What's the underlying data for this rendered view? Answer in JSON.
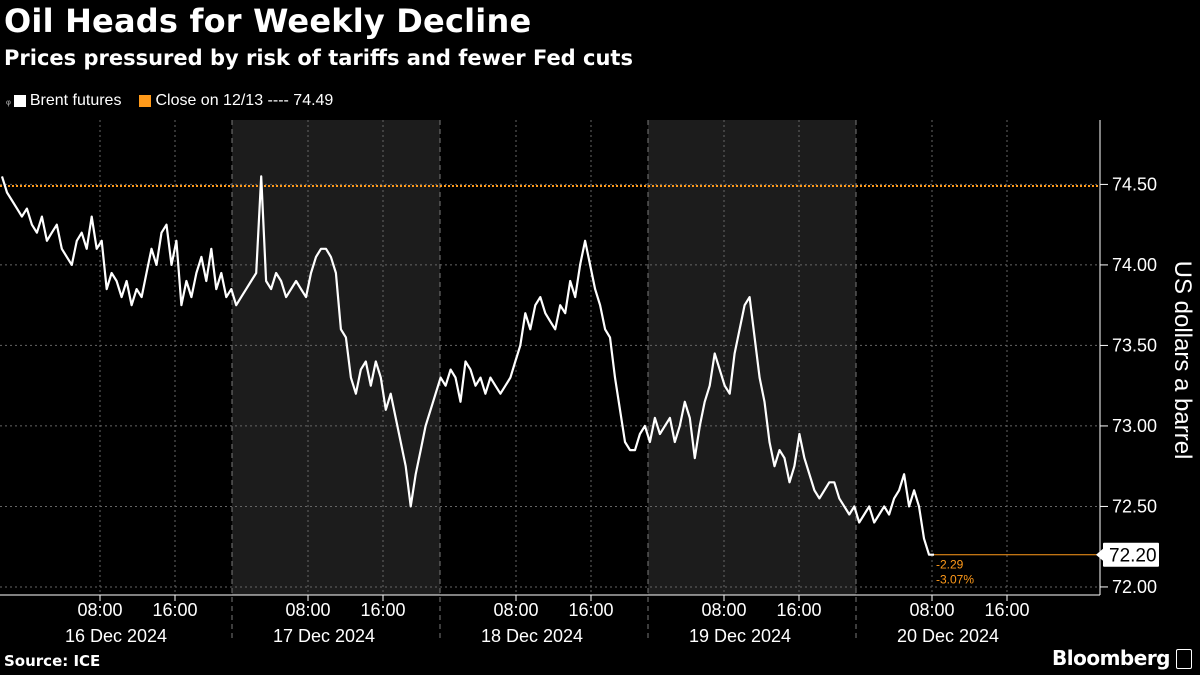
{
  "chart_data": {
    "type": "line",
    "title": "Oil Heads for Weekly Decline",
    "subtitle": "Prices pressured by risk of tariffs and fewer Fed cuts",
    "ylabel": "US dollars a barrel",
    "ylim": [
      71.95,
      74.9
    ],
    "yticks": [
      "72.00",
      "72.50",
      "73.00",
      "73.50",
      "74.00",
      "74.50"
    ],
    "x_time_labels": [
      "08:00",
      "16:00"
    ],
    "days": [
      "16 Dec 2024",
      "17 Dec 2024",
      "18 Dec 2024",
      "19 Dec 2024",
      "20 Dec 2024"
    ],
    "legend": {
      "candle_marker": "ᵩ",
      "series_name": "Brent futures",
      "reference_label": "Close on 12/13 ---- 74.49"
    },
    "reference_line": {
      "value": 74.49,
      "color": "#ff9a1a"
    },
    "last_value": "72.20",
    "change_abs": "-2.29",
    "change_pct": "-3.07%",
    "series": [
      {
        "name": "Brent futures",
        "color": "#ffffff",
        "values": [
          74.55,
          74.45,
          74.4,
          74.35,
          74.3,
          74.35,
          74.25,
          74.2,
          74.3,
          74.15,
          74.2,
          74.25,
          74.1,
          74.05,
          74.0,
          74.15,
          74.2,
          74.1,
          74.3,
          74.1,
          74.15,
          73.85,
          73.95,
          73.9,
          73.8,
          73.9,
          73.75,
          73.85,
          73.8,
          73.95,
          74.1,
          74.0,
          74.2,
          74.25,
          74.0,
          74.15,
          73.75,
          73.9,
          73.8,
          73.95,
          74.05,
          73.9,
          74.1,
          73.85,
          73.95,
          73.8,
          73.85,
          73.75,
          73.8,
          73.85,
          73.9,
          73.95,
          74.55,
          73.9,
          73.85,
          73.95,
          73.9,
          73.8,
          73.85,
          73.9,
          73.85,
          73.8,
          73.95,
          74.05,
          74.1,
          74.1,
          74.05,
          73.95,
          73.6,
          73.55,
          73.3,
          73.2,
          73.35,
          73.4,
          73.25,
          73.4,
          73.3,
          73.1,
          73.2,
          73.05,
          72.9,
          72.75,
          72.5,
          72.7,
          72.85,
          73.0,
          73.1,
          73.2,
          73.3,
          73.25,
          73.35,
          73.3,
          73.15,
          73.4,
          73.35,
          73.25,
          73.3,
          73.2,
          73.3,
          73.25,
          73.2,
          73.25,
          73.3,
          73.4,
          73.5,
          73.7,
          73.6,
          73.75,
          73.8,
          73.7,
          73.65,
          73.6,
          73.75,
          73.7,
          73.9,
          73.8,
          74.0,
          74.15,
          74.0,
          73.85,
          73.75,
          73.6,
          73.55,
          73.3,
          73.1,
          72.9,
          72.85,
          72.85,
          72.95,
          73.0,
          72.9,
          73.05,
          72.95,
          73.0,
          73.05,
          72.9,
          73.0,
          73.15,
          73.05,
          72.8,
          73.0,
          73.15,
          73.25,
          73.45,
          73.35,
          73.25,
          73.2,
          73.45,
          73.6,
          73.75,
          73.8,
          73.55,
          73.3,
          73.15,
          72.9,
          72.75,
          72.85,
          72.8,
          72.65,
          72.75,
          72.95,
          72.8,
          72.7,
          72.6,
          72.55,
          72.6,
          72.65,
          72.65,
          72.55,
          72.5,
          72.45,
          72.5,
          72.4,
          72.45,
          72.5,
          72.4,
          72.45,
          72.5,
          72.45,
          72.55,
          72.6,
          72.7,
          72.5,
          72.6,
          72.5,
          72.3,
          72.2,
          72.2
        ]
      }
    ]
  },
  "footer": {
    "source": "Source: ICE",
    "brand": "Bloomberg"
  }
}
